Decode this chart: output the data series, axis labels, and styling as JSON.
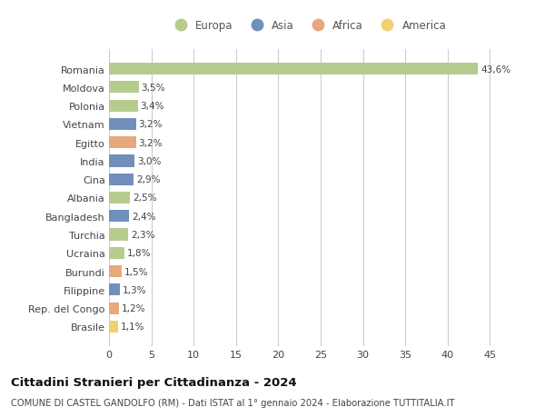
{
  "countries": [
    "Romania",
    "Moldova",
    "Polonia",
    "Vietnam",
    "Egitto",
    "India",
    "Cina",
    "Albania",
    "Bangladesh",
    "Turchia",
    "Ucraina",
    "Burundi",
    "Filippine",
    "Rep. del Congo",
    "Brasile"
  ],
  "values": [
    43.6,
    3.5,
    3.4,
    3.2,
    3.2,
    3.0,
    2.9,
    2.5,
    2.4,
    2.3,
    1.8,
    1.5,
    1.3,
    1.2,
    1.1
  ],
  "labels": [
    "43,6%",
    "3,5%",
    "3,4%",
    "3,2%",
    "3,2%",
    "3,0%",
    "2,9%",
    "2,5%",
    "2,4%",
    "2,3%",
    "1,8%",
    "1,5%",
    "1,3%",
    "1,2%",
    "1,1%"
  ],
  "continents": [
    "Europa",
    "Europa",
    "Europa",
    "Asia",
    "Africa",
    "Asia",
    "Asia",
    "Europa",
    "Asia",
    "Europa",
    "Europa",
    "Africa",
    "Asia",
    "Africa",
    "America"
  ],
  "continent_colors": {
    "Europa": "#b5cc8e",
    "Asia": "#7090bb",
    "Africa": "#e8a87c",
    "America": "#f0d070"
  },
  "legend_entries": [
    "Europa",
    "Asia",
    "Africa",
    "America"
  ],
  "legend_colors": [
    "#b5cc8e",
    "#7090bb",
    "#e8a87c",
    "#f0d070"
  ],
  "title": "Cittadini Stranieri per Cittadinanza - 2024",
  "subtitle": "COMUNE DI CASTEL GANDOLFO (RM) - Dati ISTAT al 1° gennaio 2024 - Elaborazione TUTTITALIA.IT",
  "xlim": [
    0,
    47
  ],
  "xticks": [
    0,
    5,
    10,
    15,
    20,
    25,
    30,
    35,
    40,
    45
  ],
  "background_color": "#ffffff",
  "grid_color": "#cccccc"
}
